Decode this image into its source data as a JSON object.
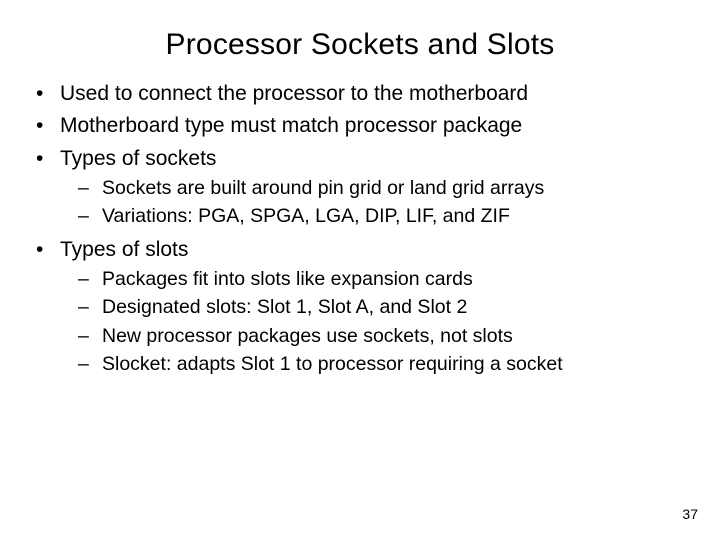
{
  "slide": {
    "title": "Processor Sockets and Slots",
    "title_fontsize": 30,
    "body_fontsize": 21,
    "sub_fontsize": 19.5,
    "background_color": "#ffffff",
    "text_color": "#000000",
    "bullets": {
      "b1": "Used to connect the processor to the motherboard",
      "b2": "Motherboard type must match processor package",
      "b3": "Types of sockets",
      "b3_subs": {
        "s1": "Sockets are built around pin grid or land grid arrays",
        "s2": "Variations: PGA, SPGA, LGA, DIP, LIF, and ZIF"
      },
      "b4": "Types of slots",
      "b4_subs": {
        "s1": "Packages fit into slots like expansion cards",
        "s2": "Designated slots: Slot 1, Slot A, and Slot 2",
        "s3": "New processor packages use sockets, not slots",
        "s4": "Slocket: adapts Slot 1 to processor requiring a socket"
      }
    },
    "page_number": "37"
  }
}
